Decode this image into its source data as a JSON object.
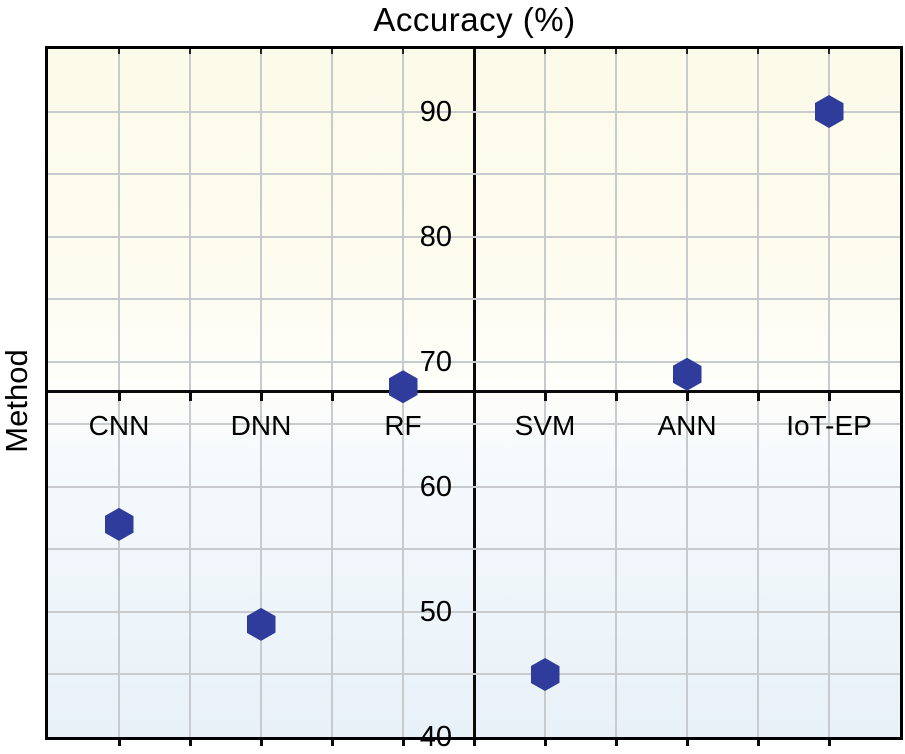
{
  "chart": {
    "title": "Accuracy (%)",
    "left_axis_label": "Method"
  },
  "chart_data": {
    "type": "scatter",
    "title": "Accuracy (%)",
    "xlabel": "Method",
    "ylabel": "Accuracy (%)",
    "categories": [
      "CNN",
      "DNN",
      "RF",
      "SVM",
      "ANN",
      "IoT-EP"
    ],
    "values": [
      57,
      49,
      68,
      45,
      69,
      90
    ],
    "y_tick_labels": [
      90,
      80,
      70,
      60,
      50,
      40
    ],
    "ylim": [
      40,
      95
    ],
    "grid_step": 5,
    "grid": true,
    "legend": "none",
    "x_axis_crossing_value": 67.6,
    "vertical_divider_after_category": "RF",
    "marker_shape": "hexagon",
    "marker_color": "#2f3c9c",
    "gridline_color": "#c7cbce",
    "background_top_color": "#fcfbe9",
    "background_bottom_color": "#e8f1f8"
  }
}
